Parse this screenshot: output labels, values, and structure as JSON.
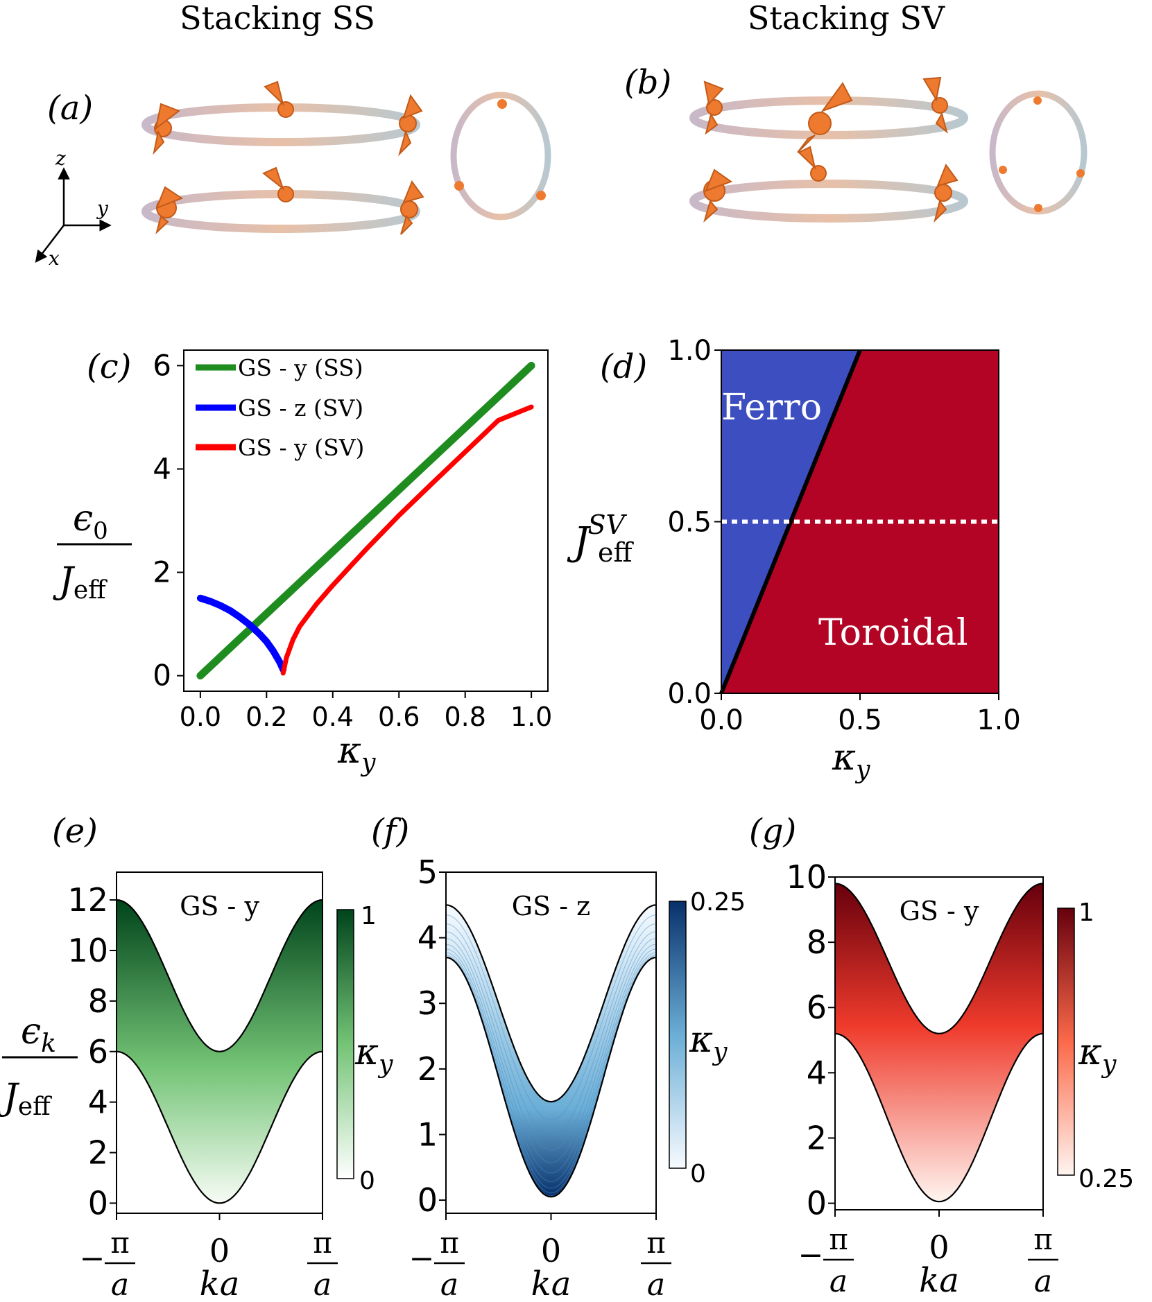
{
  "headings": {
    "left": "Stacking SS",
    "right": "Stacking SV"
  },
  "panels": {
    "a": "(a)",
    "b": "(b)",
    "c": "(c)",
    "d": "(d)",
    "e": "(e)",
    "f": "(f)",
    "g": "(g)"
  },
  "axes_triad": {
    "z": "z",
    "y": "y",
    "x": "x"
  },
  "colors": {
    "spin_arrow": "#ee7a30",
    "ring": "#c9a8a4",
    "green": "#1e8c1e",
    "blue": "#0000ff",
    "red": "#ff0000",
    "ferro": "#3c4ec0",
    "toroidal": "#b40426",
    "seq_green_dark": "#00441b",
    "seq_blue_dark": "#08306b",
    "seq_red_dark": "#67000d"
  },
  "chart_data": [
    {
      "id": "c",
      "type": "line",
      "xlabel": "κ_y",
      "ylabel": "ε0 / J_eff",
      "ylabel_num": "ϵ",
      "ylabel_num_sub": "0",
      "ylabel_den": "J",
      "ylabel_den_sub": "eff",
      "xlabel_sym": "κ",
      "xlabel_sub": "y",
      "xlim": [
        -0.05,
        1.05
      ],
      "ylim": [
        -0.3,
        6.3
      ],
      "xticks": [
        "0.0",
        "0.2",
        "0.4",
        "0.6",
        "0.8",
        "1.0"
      ],
      "xtick_values": [
        0,
        0.2,
        0.4,
        0.6,
        0.8,
        1.0
      ],
      "yticks": [
        "0",
        "2",
        "4",
        "6"
      ],
      "ytick_values": [
        0,
        2,
        4,
        6
      ],
      "series": [
        {
          "name": "GS - y (SS)",
          "color": "#1e8c1e",
          "x": [
            0,
            0.1,
            0.2,
            0.3,
            0.4,
            0.5,
            0.6,
            0.7,
            0.8,
            0.9,
            1.0
          ],
          "y": [
            0,
            0.6,
            1.2,
            1.8,
            2.4,
            3.0,
            3.6,
            4.2,
            4.8,
            5.4,
            6.0
          ]
        },
        {
          "name": "GS - z (SV)",
          "color": "#0000ff",
          "x": [
            0,
            0.03,
            0.06,
            0.09,
            0.12,
            0.15,
            0.18,
            0.2,
            0.22,
            0.24,
            0.25
          ],
          "y": [
            1.5,
            1.44,
            1.36,
            1.26,
            1.13,
            0.98,
            0.8,
            0.66,
            0.48,
            0.26,
            0.12
          ]
        },
        {
          "name": "GS - y (SV)",
          "color": "#ff0000",
          "x": [
            0.25,
            0.26,
            0.28,
            0.3,
            0.35,
            0.4,
            0.5,
            0.6,
            0.7,
            0.8,
            0.9,
            1.0
          ],
          "y": [
            0.05,
            0.35,
            0.7,
            0.95,
            1.38,
            1.75,
            2.44,
            3.1,
            3.72,
            4.33,
            4.94,
            5.2
          ]
        }
      ]
    },
    {
      "id": "d",
      "type": "heatmap",
      "xlabel": "κ_y",
      "xlabel_sym": "κ",
      "xlabel_sub": "y",
      "ylabel": "J_eff^SV",
      "ylabel_main": "J",
      "ylabel_sub": "eff",
      "ylabel_sup": "SV",
      "xlim": [
        0,
        1
      ],
      "ylim": [
        0,
        1
      ],
      "xticks": [
        "0.0",
        "0.5",
        "1.0"
      ],
      "xtick_values": [
        0,
        0.5,
        1.0
      ],
      "yticks": [
        "0.0",
        "0.5",
        "1.0"
      ],
      "ytick_values": [
        0,
        0.5,
        1.0
      ],
      "boundary": {
        "x": [
          0,
          0.5
        ],
        "y": [
          0,
          1.0
        ]
      },
      "dotted_line_y": 0.5,
      "region_labels": [
        "Ferro",
        "Toroidal"
      ]
    },
    {
      "id": "e",
      "type": "area",
      "title": "GS - y",
      "xticks": [
        "−π/a",
        "0",
        "π/a"
      ],
      "xtick_values": [
        -1,
        0,
        1
      ],
      "xlim": [
        -1,
        1
      ],
      "ylim": [
        -0.4,
        13.1
      ],
      "yticks": [
        "0",
        "2",
        "4",
        "6",
        "8",
        "10",
        "12"
      ],
      "ytick_values": [
        0,
        2,
        4,
        6,
        8,
        10,
        12
      ],
      "ylabel": "ε_k / J_eff",
      "ylabel_num": "ϵ",
      "ylabel_num_sub": "k",
      "ylabel_den": "J",
      "ylabel_den_sub": "eff",
      "xlabel": "ka",
      "lower_band": {
        "at_zero": 0,
        "at_edge": 6
      },
      "upper_band": {
        "at_zero": 6,
        "at_edge": 12
      },
      "colorbar": {
        "label": "κ_y",
        "min": "0",
        "max": "1",
        "colormap": "Greens"
      }
    },
    {
      "id": "f",
      "type": "area",
      "title": "GS - z",
      "xticks": [
        "−π/a",
        "0",
        "π/a"
      ],
      "xtick_values": [
        -1,
        0,
        1
      ],
      "xlim": [
        -1,
        1
      ],
      "ylim": [
        -0.2,
        5.0
      ],
      "yticks": [
        "0",
        "1",
        "2",
        "3",
        "4",
        "5"
      ],
      "ytick_values": [
        0,
        1,
        2,
        3,
        4,
        5
      ],
      "xlabel": "ka",
      "lower_band": {
        "at_zero": 0.05,
        "at_edge": 3.7
      },
      "upper_band": {
        "at_zero": 1.5,
        "at_edge": 4.5
      },
      "colorbar": {
        "label": "κ_y",
        "min": "0",
        "max": "0.25",
        "colormap": "Blues"
      }
    },
    {
      "id": "g",
      "type": "area",
      "title": "GS - y",
      "xticks": [
        "−π/a",
        "0",
        "π/a"
      ],
      "xtick_values": [
        -1,
        0,
        1
      ],
      "xlim": [
        -1,
        1
      ],
      "ylim": [
        -0.2,
        10.0
      ],
      "yticks": [
        "0",
        "2",
        "4",
        "6",
        "8",
        "10"
      ],
      "ytick_values": [
        0,
        2,
        4,
        6,
        8,
        10
      ],
      "xlabel": "ka",
      "lower_band": {
        "at_zero": 0.05,
        "at_edge": 5.2
      },
      "upper_band": {
        "at_zero": 5.2,
        "at_edge": 9.8
      },
      "colorbar": {
        "label": "κ_y",
        "min": "0.25",
        "max": "1",
        "colormap": "Reds"
      }
    }
  ]
}
